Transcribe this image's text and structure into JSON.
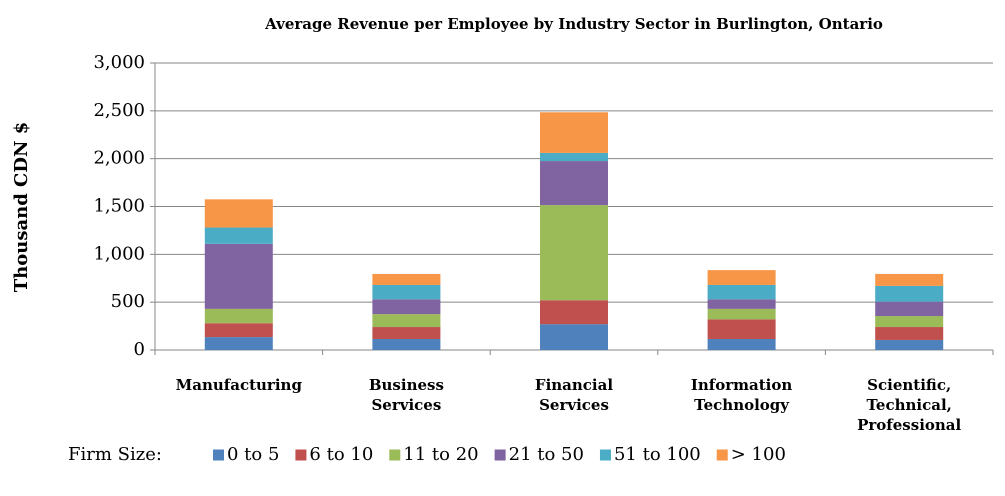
{
  "chart_data": {
    "type": "stacked_bar",
    "title": "Average Revenue per Employee by Industry Sector in Burlington, Ontario",
    "y_label": "Thousand CDN $",
    "legend_title": "Firm Size:",
    "categories": [
      "Manufacturing",
      "Business\nServices",
      "Financial\nServices",
      "Information\nTechnology",
      "Scientific,\nTechnical,\nProfessional"
    ],
    "series": [
      {
        "name": "0 to 5",
        "color": "#4f81bd",
        "values": [
          135,
          115,
          270,
          115,
          105
        ]
      },
      {
        "name": "6 to 10",
        "color": "#c0504d",
        "values": [
          145,
          125,
          250,
          205,
          135
        ]
      },
      {
        "name": "11 to 20",
        "color": "#9bbb59",
        "values": [
          150,
          135,
          995,
          110,
          115
        ]
      },
      {
        "name": "21 to 50",
        "color": "#8064a2",
        "values": [
          680,
          155,
          460,
          100,
          150
        ]
      },
      {
        "name": "51 to 100",
        "color": "#4bacc6",
        "values": [
          170,
          150,
          85,
          150,
          165
        ]
      },
      {
        "name": "> 100",
        "color": "#f79646",
        "values": [
          295,
          115,
          425,
          155,
          125
        ]
      }
    ],
    "ylim": [
      0,
      3000
    ],
    "yticks": [
      0,
      500,
      {
        "value": 1000,
        "label": "1,000"
      },
      {
        "value": 1500,
        "label": "1,500"
      },
      {
        "value": 2000,
        "label": "2,000"
      },
      {
        "value": 2500,
        "label": "2,500"
      },
      {
        "value": 3000,
        "label": "3,000"
      }
    ],
    "grid": true,
    "legend": "bottom"
  }
}
